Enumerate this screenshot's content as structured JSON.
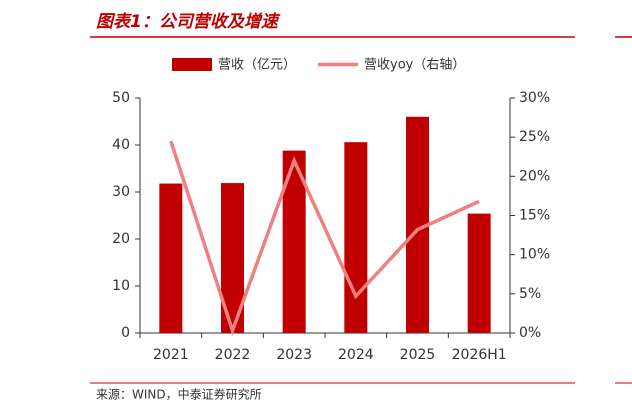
{
  "chart_data": {
    "type": "bar-line",
    "title": "图表1：公司营收及增速",
    "source": "来源：WIND，中泰证券研究所",
    "categories": [
      "2021",
      "2022",
      "2023",
      "2024",
      "2025",
      "2026H1"
    ],
    "series": [
      {
        "name": "营收（亿元）",
        "type": "bar",
        "color": "#c00000",
        "values": [
          31.8,
          31.9,
          38.8,
          40.6,
          46.0,
          25.4
        ]
      },
      {
        "name": "营收yoy（右轴）",
        "type": "line",
        "color": "#f08080",
        "axis": "y2",
        "values": [
          24.5,
          0.3,
          22.0,
          4.7,
          13.2,
          16.8
        ]
      }
    ],
    "ylim": [
      0,
      50
    ],
    "yticks": [
      0,
      10,
      20,
      30,
      40,
      50
    ],
    "y2lim": [
      0,
      30
    ],
    "y2ticks": [
      {
        "value": 0,
        "label": "0%"
      },
      {
        "value": 5,
        "label": "5%"
      },
      {
        "value": 10,
        "label": "10%"
      },
      {
        "value": 15,
        "label": "15%"
      },
      {
        "value": 20,
        "label": "20%"
      },
      {
        "value": 25,
        "label": "25%"
      },
      {
        "value": 30,
        "label": "30%"
      }
    ],
    "grid": false,
    "legend": "top"
  }
}
